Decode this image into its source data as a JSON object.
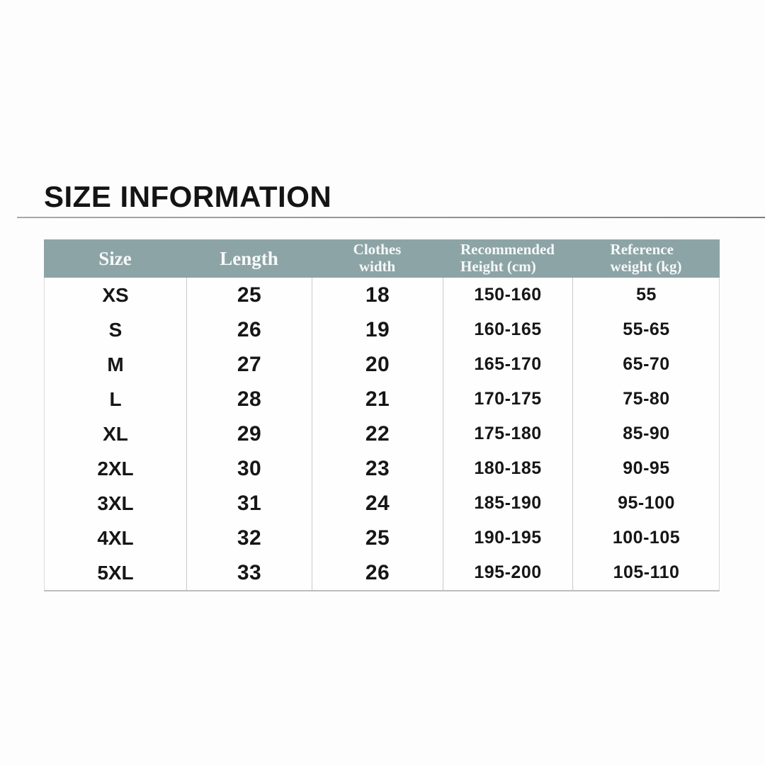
{
  "page": {
    "title": "SIZE INFORMATION"
  },
  "colors": {
    "header_bg": "#8da4a6",
    "header_text": "#f6f9f9",
    "body_text": "#161616",
    "column_divider": "#c9c9c9",
    "table_border": "#bdbdbd",
    "title_rule": "#8a8a8a",
    "background": "#fdfdfd"
  },
  "table": {
    "columns": [
      {
        "id": "size",
        "lines": [
          "Size"
        ]
      },
      {
        "id": "length",
        "lines": [
          "Length"
        ]
      },
      {
        "id": "clothes_width",
        "lines": [
          "Clothes",
          "width"
        ]
      },
      {
        "id": "recommended_height",
        "lines": [
          "Recommended",
          "Height (cm)"
        ]
      },
      {
        "id": "reference_weight",
        "lines": [
          "Reference",
          "weight (kg)"
        ]
      }
    ],
    "rows": [
      {
        "size": "XS",
        "length": "25",
        "clothes_width": "18",
        "recommended_height": "150-160",
        "reference_weight": "55"
      },
      {
        "size": "S",
        "length": "26",
        "clothes_width": "19",
        "recommended_height": "160-165",
        "reference_weight": "55-65"
      },
      {
        "size": "M",
        "length": "27",
        "clothes_width": "20",
        "recommended_height": "165-170",
        "reference_weight": "65-70"
      },
      {
        "size": "L",
        "length": "28",
        "clothes_width": "21",
        "recommended_height": "170-175",
        "reference_weight": "75-80"
      },
      {
        "size": "XL",
        "length": "29",
        "clothes_width": "22",
        "recommended_height": "175-180",
        "reference_weight": "85-90"
      },
      {
        "size": "2XL",
        "length": "30",
        "clothes_width": "23",
        "recommended_height": "180-185",
        "reference_weight": "90-95"
      },
      {
        "size": "3XL",
        "length": "31",
        "clothes_width": "24",
        "recommended_height": "185-190",
        "reference_weight": "95-100"
      },
      {
        "size": "4XL",
        "length": "32",
        "clothes_width": "25",
        "recommended_height": "190-195",
        "reference_weight": "100-105"
      },
      {
        "size": "5XL",
        "length": "33",
        "clothes_width": "26",
        "recommended_height": "195-200",
        "reference_weight": "105-110"
      }
    ]
  },
  "chart_data": {
    "type": "table",
    "title": "SIZE INFORMATION",
    "columns": [
      "Size",
      "Length",
      "Clothes width",
      "Recommended Height (cm)",
      "Reference weight (kg)"
    ],
    "rows": [
      [
        "XS",
        25,
        18,
        "150-160",
        "55"
      ],
      [
        "S",
        26,
        19,
        "160-165",
        "55-65"
      ],
      [
        "M",
        27,
        20,
        "165-170",
        "65-70"
      ],
      [
        "L",
        28,
        21,
        "170-175",
        "75-80"
      ],
      [
        "XL",
        29,
        22,
        "175-180",
        "85-90"
      ],
      [
        "2XL",
        30,
        23,
        "180-185",
        "90-95"
      ],
      [
        "3XL",
        31,
        24,
        "185-190",
        "95-100"
      ],
      [
        "4XL",
        32,
        25,
        "190-195",
        "100-105"
      ],
      [
        "5XL",
        33,
        26,
        "195-200",
        "105-110"
      ]
    ]
  }
}
